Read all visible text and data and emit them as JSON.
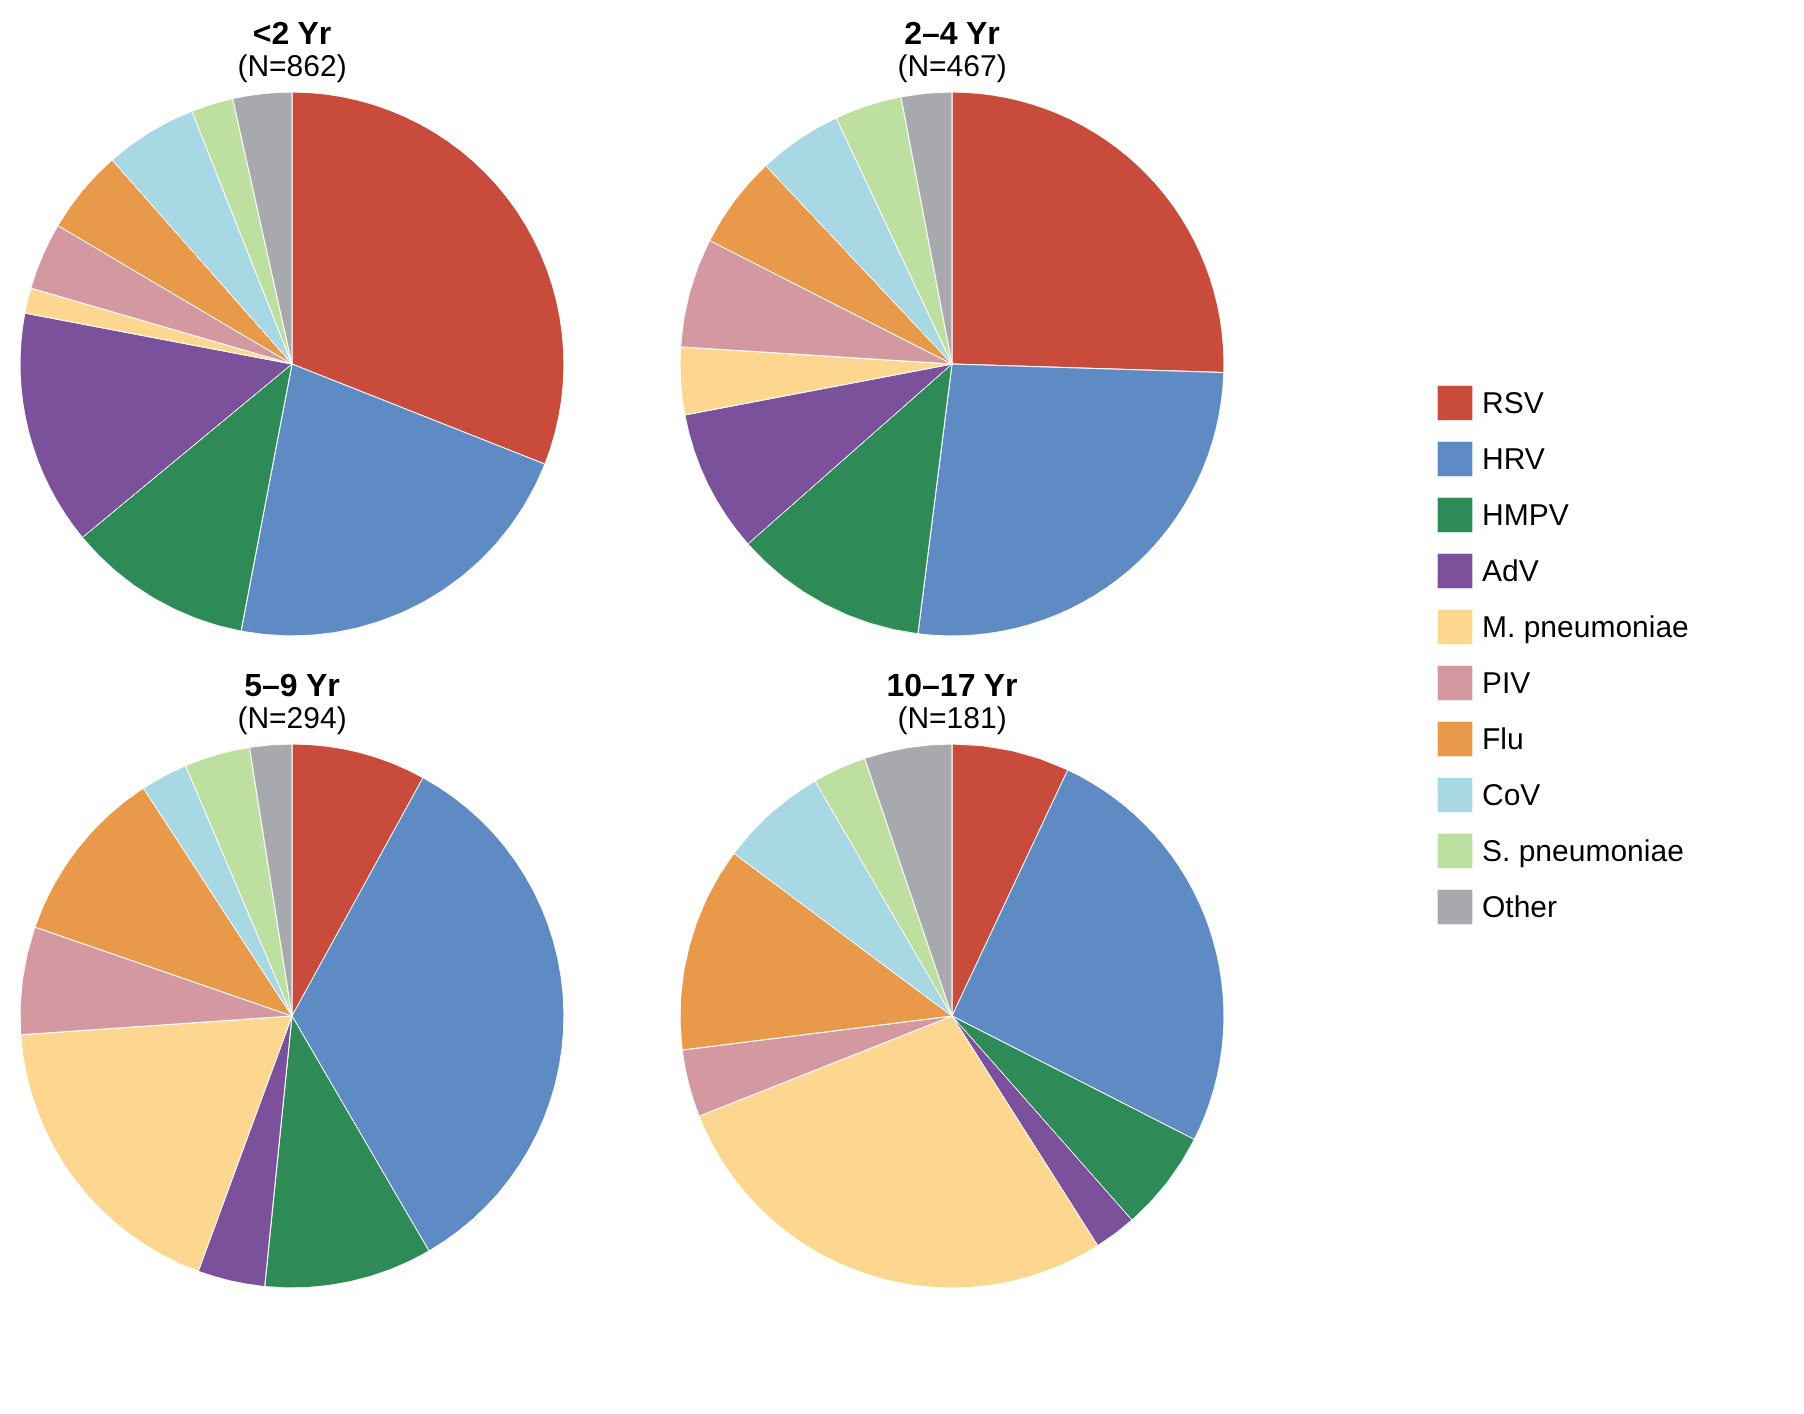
{
  "chart_data": [
    {
      "type": "pie",
      "title": "<2 Yr",
      "subtitle": "(N=862)",
      "legend": "right",
      "categories": [
        "RSV",
        "HRV",
        "HMPV",
        "AdV",
        "M. pneumoniae",
        "PIV",
        "Flu",
        "CoV",
        "S. pneumoniae",
        "Other"
      ],
      "values": [
        31,
        22,
        11,
        14,
        1.5,
        4,
        5,
        5.5,
        2.5,
        3.5
      ],
      "colors": [
        "#c84b3c",
        "#5f8bc4",
        "#2e8b57",
        "#7b519c",
        "#fdd68f",
        "#d498a0",
        "#e89a4a",
        "#a8d8e3",
        "#bde0a0",
        "#a7a9ac"
      ]
    },
    {
      "type": "pie",
      "title": "2–4 Yr",
      "subtitle": "(N=467)",
      "categories": [
        null,
        null,
        null,
        null,
        null,
        null,
        null,
        null,
        null,
        null
      ],
      "values": [
        25.5,
        26.5,
        11.5,
        8.5,
        4,
        6.5,
        5.5,
        5,
        4,
        3
      ],
      "colors": [
        "#c84b3c",
        "#5f8bc4",
        "#2e8b57",
        "#7b519c",
        "#fdd68f",
        "#d498a0",
        "#e89a4a",
        "#a8d8e3",
        "#bde0a0",
        "#a7a9ac"
      ]
    },
    {
      "type": "pie",
      "title": "5–9 Yr",
      "subtitle": "(N=294)",
      "categories": [
        null,
        null,
        null,
        null,
        null,
        null,
        null,
        null,
        null,
        null
      ],
      "values": [
        8,
        33.6,
        10,
        4,
        18.3,
        6.4,
        10.5,
        2.8,
        3.9,
        2.5
      ],
      "colors": [
        "#c84b3c",
        "#5f8bc4",
        "#2e8b57",
        "#7b519c",
        "#fdd68f",
        "#d498a0",
        "#e89a4a",
        "#a8d8e3",
        "#bde0a0",
        "#a7a9ac"
      ]
    },
    {
      "type": "pie",
      "title": "10–17 Yr",
      "subtitle": "(N=181)",
      "categories": [
        null,
        null,
        null,
        null,
        null,
        null,
        null,
        null,
        null,
        null
      ],
      "values": [
        7,
        25.5,
        6,
        2.5,
        28,
        4,
        12.2,
        6.4,
        3.2,
        5.2
      ],
      "colors": [
        "#c84b3c",
        "#5f8bc4",
        "#2e8b57",
        "#7b519c",
        "#fdd68f",
        "#d498a0",
        "#e89a4a",
        "#a8d8e3",
        "#bde0a0",
        "#a7a9ac"
      ]
    }
  ]
}
